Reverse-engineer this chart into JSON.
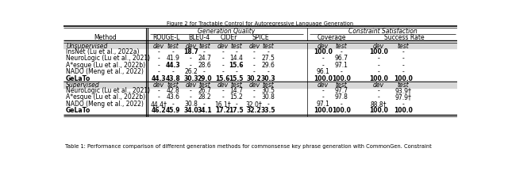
{
  "title": "Figure 2 for Tractable Control for Autoregressive Language Generation",
  "unsupervised_rows": [
    {
      "method": "InsNet (Lu et al., 2022a)",
      "vals": [
        "-",
        "-",
        "18.7",
        "-",
        "-",
        "-",
        "-",
        "-",
        "100.0",
        "-",
        "100.0",
        "-"
      ],
      "bold": [
        2,
        8,
        10
      ]
    },
    {
      "method": "NeuroLogic (Lu et al., 2021)",
      "vals": [
        "-",
        "41.9",
        "-",
        "24.7",
        "-",
        "14.4",
        "-",
        "27.5",
        "-",
        "96.7",
        "-",
        "-"
      ],
      "bold": []
    },
    {
      "method": "A*esque (Lu et al., 2022b)",
      "vals": [
        "-",
        "44.3",
        "-",
        "28.6",
        "-",
        "15.6",
        "-",
        "29.6",
        "-",
        "97.1",
        "-",
        "-"
      ],
      "bold": [
        1,
        5
      ]
    },
    {
      "method": "NADO (Meng et al., 2022)",
      "vals": [
        "-",
        "-",
        "26.2",
        "-",
        "-",
        "-",
        "-",
        "-",
        "96.1",
        "-",
        "-",
        "-"
      ],
      "bold": []
    },
    {
      "method": "GeLaTo",
      "vals": [
        "44.3",
        "43.8",
        "30.3",
        "29.0",
        "15.6",
        "15.5",
        "30.2",
        "30.3",
        "100.0",
        "100.0",
        "100.0",
        "100.0"
      ],
      "bold": [
        0,
        1,
        2,
        3,
        4,
        5,
        6,
        7,
        8,
        9,
        10,
        11
      ]
    }
  ],
  "supervised_rows": [
    {
      "method": "NeuroLogic (Lu et al., 2021)",
      "vals": [
        "-",
        "42.8",
        "-",
        "26.7",
        "-",
        "14.7",
        "-",
        "30.5",
        "-",
        "97.7",
        "-",
        "93.9†"
      ],
      "bold": []
    },
    {
      "method": "A*esque (Lu et al., 2022b)",
      "vals": [
        "-",
        "43.6",
        "-",
        "28.2",
        "-",
        "15.2",
        "-",
        "30.8",
        "-",
        "97.8",
        "-",
        "97.9†"
      ],
      "bold": []
    },
    {
      "method": "NADO (Meng et al., 2022)",
      "vals": [
        "44.4†",
        "-",
        "30.8",
        "-",
        "16.1†",
        "-",
        "32.0†",
        "-",
        "97.1",
        "-",
        "88.8†",
        "-"
      ],
      "bold": []
    },
    {
      "method": "GeLaTo",
      "vals": [
        "46.2",
        "45.9",
        "34.0",
        "34.1",
        "17.2",
        "17.5",
        "32.2",
        "33.5",
        "100.0",
        "100.0",
        "100.0",
        "100.0"
      ],
      "bold": [
        0,
        1,
        2,
        3,
        4,
        5,
        6,
        7,
        8,
        9,
        10,
        11
      ]
    }
  ],
  "caption": "Table 1: Performance comparison of different generation methods for commonsense key phrase generation with CommonGen. Constraint",
  "col_groups": [
    {
      "label": "ROUGE-L",
      "cols": [
        0,
        1
      ]
    },
    {
      "label": "BLEU-4",
      "cols": [
        2,
        3
      ]
    },
    {
      "label": "CIDEr",
      "cols": [
        4,
        5
      ]
    },
    {
      "label": "SPICE",
      "cols": [
        6,
        7
      ]
    },
    {
      "label": "Coverage",
      "cols": [
        8,
        9
      ]
    },
    {
      "label": "Success Rate",
      "cols": [
        10,
        11
      ]
    }
  ],
  "section_bg": "#d8d8d8"
}
